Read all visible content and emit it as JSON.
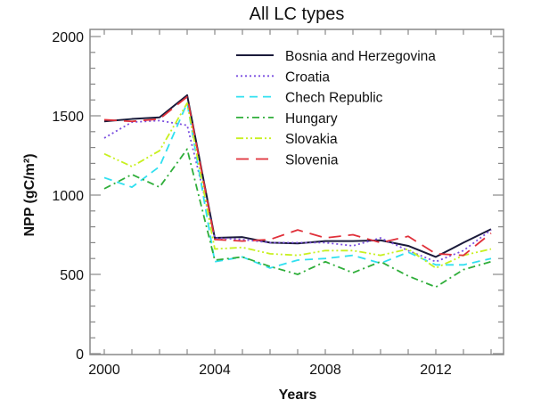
{
  "chart_data": {
    "type": "line",
    "title": "All LC types",
    "xlabel": "Years",
    "ylabel": "NPP  (gC/m²)",
    "xlim": [
      2000,
      2014.5
    ],
    "ylim": [
      0,
      2000
    ],
    "xticks": [
      2000,
      2004,
      2008,
      2012
    ],
    "xtick_labels": [
      "2000",
      "2004",
      "2008",
      "2012"
    ],
    "yticks": [
      0,
      500,
      1000,
      1500,
      2000
    ],
    "ytick_labels": [
      "0",
      "500",
      "1000",
      "1500",
      "2000"
    ],
    "grid": false,
    "legend_position": "top-right",
    "x": [
      2000,
      2001,
      2002,
      2003,
      2004,
      2005,
      2006,
      2007,
      2008,
      2009,
      2010,
      2011,
      2012,
      2013,
      2014
    ],
    "series": [
      {
        "name": "Bosnia and Herzegovina",
        "color": "#1a1a3a",
        "dash": "",
        "values": [
          1465,
          1480,
          1490,
          1630,
          730,
          735,
          700,
          695,
          710,
          710,
          715,
          680,
          610,
          700,
          785
        ]
      },
      {
        "name": "Croatia",
        "color": "#7b4fe0",
        "dash": "2,3",
        "values": [
          1360,
          1460,
          1470,
          1440,
          730,
          720,
          700,
          700,
          700,
          680,
          730,
          650,
          580,
          650,
          780
        ]
      },
      {
        "name": "Chech Republic",
        "color": "#30e0f0",
        "dash": "9,6",
        "values": [
          1110,
          1050,
          1180,
          1580,
          580,
          610,
          540,
          590,
          600,
          620,
          570,
          640,
          560,
          560,
          600
        ]
      },
      {
        "name": "Hungary",
        "color": "#2fae3a",
        "dash": "8,4,2,4",
        "values": [
          1040,
          1130,
          1050,
          1290,
          590,
          610,
          550,
          500,
          580,
          510,
          580,
          490,
          420,
          530,
          580
        ]
      },
      {
        "name": "Slovakia",
        "color": "#c8f020",
        "dash": "8,3,2,3,2,3",
        "values": [
          1260,
          1180,
          1280,
          1580,
          660,
          670,
          630,
          620,
          650,
          650,
          620,
          660,
          540,
          620,
          660
        ]
      },
      {
        "name": "Slovenia",
        "color": "#e0303a",
        "dash": "14,8",
        "values": [
          1475,
          1465,
          1480,
          1620,
          720,
          710,
          720,
          780,
          730,
          750,
          700,
          740,
          630,
          620,
          760
        ]
      }
    ]
  }
}
